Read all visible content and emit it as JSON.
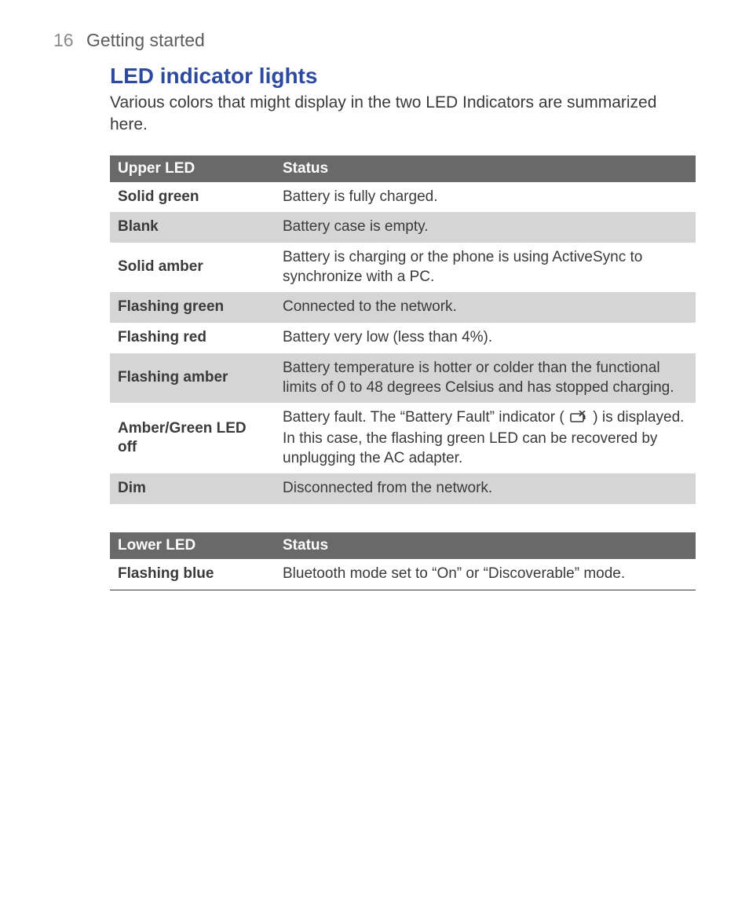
{
  "page": {
    "number": "16",
    "section": "Getting started"
  },
  "title": "LED indicator lights",
  "intro": "Various colors that might display in the two LED Indicators are summarized here.",
  "tables": {
    "upper": {
      "header": {
        "col1": "Upper LED",
        "col2": "Status"
      },
      "rows": [
        {
          "label": "Solid green",
          "status": "Battery is fully charged.",
          "stripe": false
        },
        {
          "label": "Blank",
          "status": "Battery case is empty.",
          "stripe": true
        },
        {
          "label": "Solid amber",
          "status": "Battery is charging or the phone is using ActiveSync to synchronize with a PC.",
          "stripe": false
        },
        {
          "label": "Flashing green",
          "status": "Connected to the network.",
          "stripe": true
        },
        {
          "label": "Flashing red",
          "status": "Battery very low (less than 4%).",
          "stripe": false
        },
        {
          "label": "Flashing amber",
          "status": "Battery temperature is hotter or colder than the functional limits of 0 to 48 degrees Celsius and has stopped charging.",
          "stripe": true
        },
        {
          "label": "Amber/Green LED off",
          "status_pre": "Battery fault. The “Battery Fault” indicator ( ",
          "status_post": " ) is displayed. In this case, the flashing green LED can be recovered by unplugging the AC adapter.",
          "icon": "battery-fault-icon",
          "stripe": false
        },
        {
          "label": "Dim",
          "status": "Disconnected from the network.",
          "stripe": true
        }
      ]
    },
    "lower": {
      "header": {
        "col1": "Lower LED",
        "col2": "Status"
      },
      "rows": [
        {
          "label": "Flashing blue",
          "status": "Bluetooth mode set to “On” or “Discoverable” mode.",
          "stripe": false
        }
      ]
    }
  },
  "colors": {
    "title": "#2e4a9e",
    "header_bg": "#696969",
    "stripe_bg": "#d5d5d5",
    "text": "#3a3a3a"
  }
}
